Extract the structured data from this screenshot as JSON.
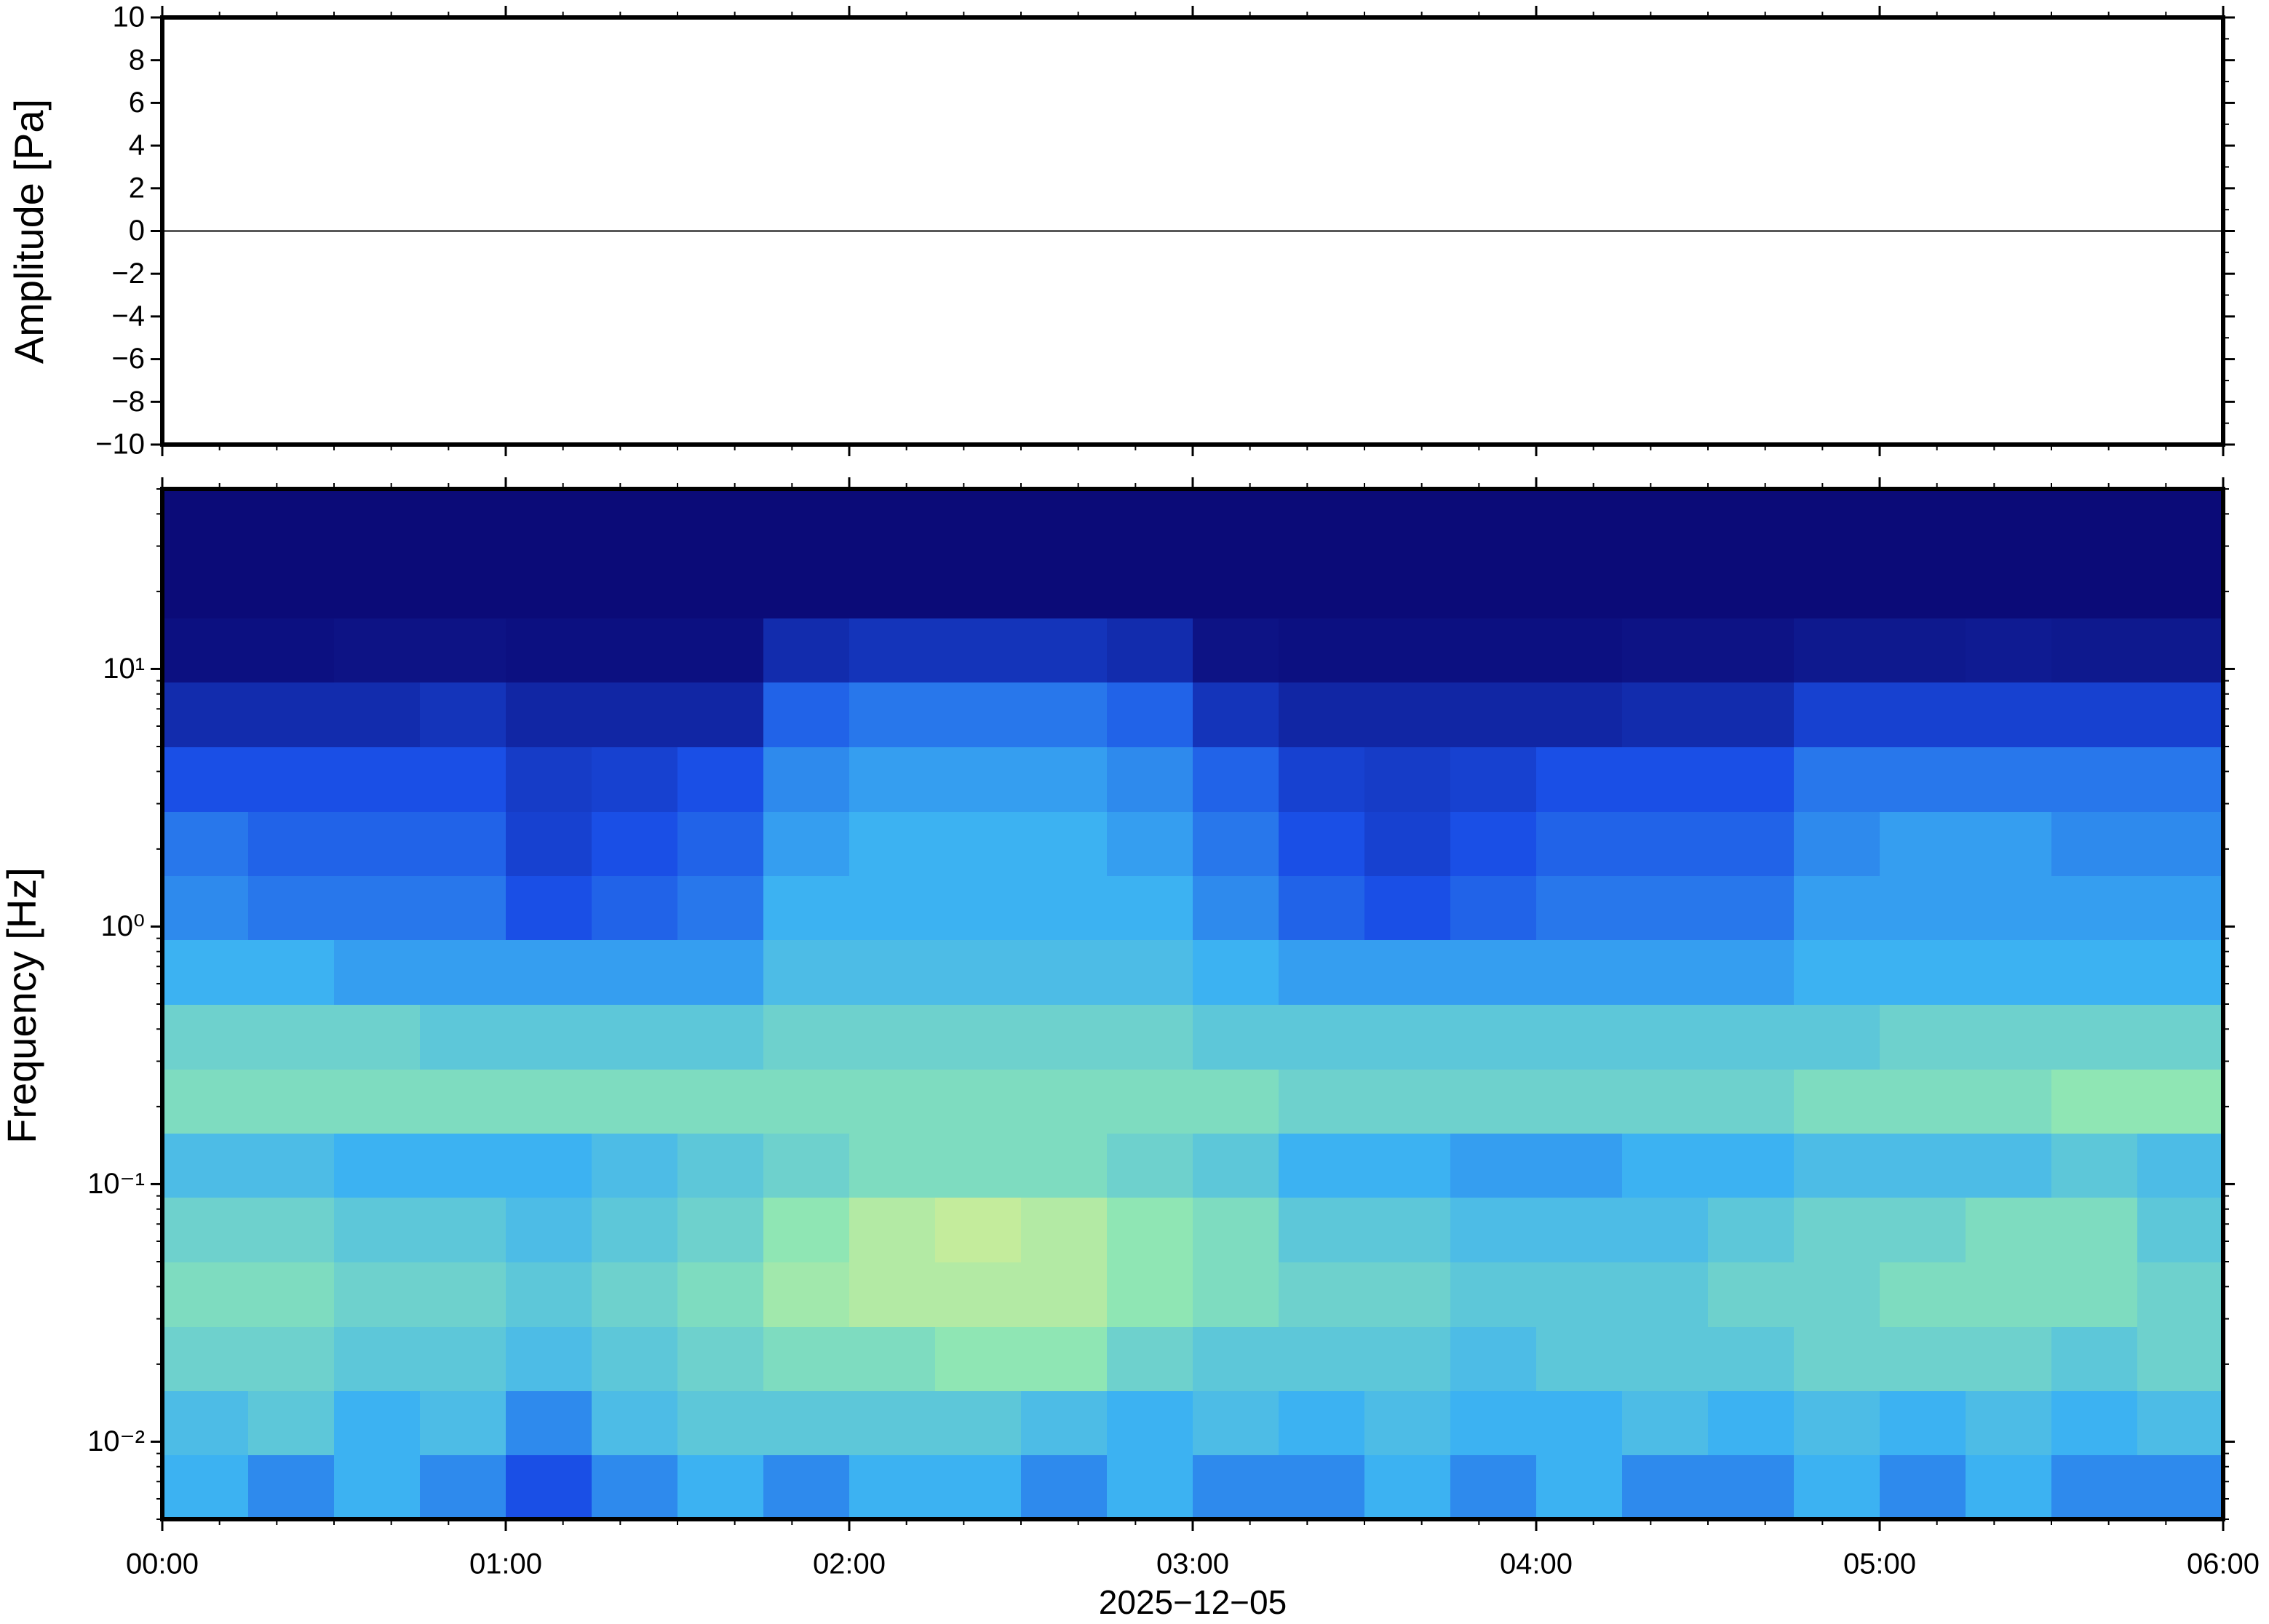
{
  "chart_data": [
    {
      "type": "line",
      "ylabel": "Amplitude [Pa]",
      "xlim": [
        0,
        6
      ],
      "xticks": [
        {
          "value": 0,
          "label": "00:00"
        },
        {
          "value": 1,
          "label": "01:00"
        },
        {
          "value": 2,
          "label": "02:00"
        },
        {
          "value": 3,
          "label": "03:00"
        },
        {
          "value": 4,
          "label": "04:00"
        },
        {
          "value": 5,
          "label": "05:00"
        },
        {
          "value": 6,
          "label": "06:00"
        }
      ],
      "ylim": [
        -10,
        10
      ],
      "yticks": [
        {
          "value": -10,
          "label": "−10"
        },
        {
          "value": -8,
          "label": "−8"
        },
        {
          "value": -6,
          "label": "−6"
        },
        {
          "value": -4,
          "label": "−4"
        },
        {
          "value": -2,
          "label": "−2"
        },
        0,
        2,
        4,
        6,
        8,
        10
      ],
      "x": [
        0,
        1,
        2,
        3,
        4,
        5,
        6
      ],
      "series": [
        {
          "color": "#000000",
          "values": [
            0,
            0,
            0,
            0,
            0,
            0,
            0
          ]
        }
      ]
    },
    {
      "type": "heatmap",
      "ylabel": "Frequency [Hz]",
      "xlabel": "2025−12−05",
      "log_y": true,
      "xlim": [
        0,
        6
      ],
      "xticks": [
        {
          "value": 0,
          "label": "00:00"
        },
        {
          "value": 1,
          "label": "01:00"
        },
        {
          "value": 2,
          "label": "02:00"
        },
        {
          "value": 3,
          "label": "03:00"
        },
        {
          "value": 4,
          "label": "04:00"
        },
        {
          "value": 5,
          "label": "05:00"
        },
        {
          "value": 6,
          "label": "06:00"
        }
      ],
      "ylim": [
        0.005,
        50
      ],
      "yticks": [
        {
          "value": 0.01,
          "label": "10⁻²"
        },
        {
          "value": 0.1,
          "label": "10⁻¹"
        },
        {
          "value": 1,
          "label": "10⁰"
        },
        {
          "value": 10,
          "label": "10¹"
        }
      ],
      "colormap": [
        "#0b0b78",
        "#1a4fe6",
        "#3cb2f2",
        "#8fe6b4",
        "#e8f08c"
      ],
      "clim": [
        0,
        10
      ],
      "x_bins": [
        0,
        0.25,
        0.5,
        0.75,
        1,
        1.25,
        1.5,
        1.75,
        2,
        2.25,
        2.5,
        2.75,
        3,
        3.25,
        3.5,
        3.75,
        4,
        4.25,
        4.5,
        4.75,
        5,
        5.25,
        5.5,
        5.75,
        6
      ],
      "y_bins": [
        0.005,
        0.0089,
        0.0158,
        0.028,
        0.05,
        0.089,
        0.158,
        0.28,
        0.5,
        0.89,
        1.58,
        2.8,
        5,
        8.9,
        15.8,
        28,
        50
      ],
      "values": [
        [
          5,
          4,
          5,
          4,
          2.5,
          4,
          5,
          4,
          5,
          5,
          4,
          5,
          4,
          4,
          5,
          4,
          5,
          4,
          4,
          5,
          4,
          5,
          4,
          4
        ],
        [
          5.5,
          6,
          5,
          5.5,
          4,
          5.5,
          6,
          6,
          6,
          6,
          5.5,
          5,
          5.5,
          5,
          5.5,
          5,
          5,
          5.5,
          5,
          5.5,
          5,
          5.5,
          5,
          5.5
        ],
        [
          6.5,
          6.5,
          6,
          6,
          5.5,
          6,
          6.5,
          7,
          7,
          7.5,
          7.5,
          6.5,
          6,
          6,
          6,
          5.5,
          6,
          6,
          6,
          6.5,
          6.5,
          6.5,
          6,
          6.5
        ],
        [
          7,
          7,
          6.5,
          6.5,
          6,
          6.5,
          7,
          8,
          8.5,
          8.5,
          8.5,
          7.5,
          7,
          6.5,
          6.5,
          6,
          6,
          6,
          6.5,
          6.5,
          7,
          7,
          7,
          6.5
        ],
        [
          6.5,
          6.5,
          6,
          6,
          5.5,
          6,
          6.5,
          7.5,
          8.5,
          9,
          8.5,
          7.5,
          7,
          6,
          6,
          5.5,
          5.5,
          5.5,
          6,
          6.5,
          6.5,
          7,
          7,
          6
        ],
        [
          5.5,
          5.5,
          5,
          5,
          5,
          5.5,
          6,
          6.5,
          7,
          7,
          7,
          6.5,
          6,
          5,
          5,
          4.5,
          4.5,
          5,
          5,
          5.5,
          5.5,
          5.5,
          6,
          5.5
        ],
        [
          7,
          7,
          7,
          7,
          7,
          7,
          7,
          7,
          7,
          7,
          7,
          7,
          7,
          6.5,
          6.5,
          6.5,
          6.5,
          6.5,
          6.5,
          7,
          7,
          7,
          7.5,
          7.5
        ],
        [
          6.5,
          6.5,
          6.5,
          6,
          6,
          6,
          6,
          6.5,
          6.5,
          6.5,
          6.5,
          6.5,
          6,
          6,
          6,
          6,
          6,
          6,
          6,
          6,
          6.5,
          6.5,
          6.5,
          6.5
        ],
        [
          5,
          5,
          4.5,
          4.5,
          4.5,
          4.5,
          4.5,
          5.5,
          5.5,
          5.5,
          5.5,
          5.5,
          5,
          4.5,
          4.5,
          4.5,
          4.5,
          4.5,
          4.5,
          5,
          5,
          5,
          5,
          5
        ],
        [
          4,
          3.5,
          3.5,
          3.5,
          2.5,
          3,
          3.5,
          5,
          5,
          5,
          5,
          5,
          4,
          3,
          2.5,
          3,
          3.5,
          3.5,
          3.5,
          4.5,
          4.5,
          4.5,
          4.5,
          4.5
        ],
        [
          3.5,
          3,
          3,
          3,
          2,
          2.5,
          3,
          4.5,
          5,
          5,
          5,
          4.5,
          3.5,
          2.5,
          2,
          2.5,
          3,
          3,
          3,
          4,
          4.5,
          4.5,
          4,
          4
        ],
        [
          2.5,
          2.5,
          2.5,
          2.5,
          1.8,
          2,
          2.5,
          4,
          4.5,
          4.5,
          4.5,
          4,
          3,
          2,
          1.8,
          2,
          2.5,
          2.5,
          2.5,
          3.5,
          3.5,
          3.5,
          3.5,
          3.5
        ],
        [
          1.2,
          1.2,
          1.2,
          1.5,
          1,
          1,
          1,
          3,
          3.5,
          3.5,
          3.5,
          3,
          1.5,
          1,
          1,
          1,
          1,
          1.2,
          1.2,
          2,
          2,
          2,
          2,
          2
        ],
        [
          0.2,
          0.2,
          0.3,
          0.3,
          0.2,
          0.2,
          0.2,
          1.2,
          1.5,
          1.5,
          1.5,
          1.2,
          0.3,
          0.2,
          0.2,
          0.2,
          0.2,
          0.3,
          0.3,
          0.5,
          0.5,
          0.6,
          0.5,
          0.5
        ],
        [
          0,
          0,
          0,
          0,
          0,
          0,
          0,
          0,
          0,
          0,
          0,
          0,
          0,
          0,
          0,
          0,
          0,
          0,
          0,
          0,
          0,
          0,
          0,
          0
        ],
        [
          0,
          0,
          0,
          0,
          0,
          0,
          0,
          0,
          0,
          0,
          0,
          0,
          0,
          0,
          0,
          0,
          0,
          0,
          0,
          0,
          0,
          0,
          0,
          0
        ]
      ]
    }
  ]
}
